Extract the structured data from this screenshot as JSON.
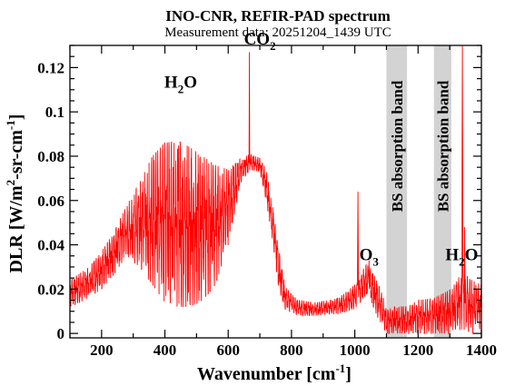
{
  "chart_data": {
    "type": "line",
    "title": "INO-CNR, REFIR-PAD spectrum",
    "subtitle": "Measurement data: 20251204_1439 UTC",
    "xlabel": "Wavenumber [cm-1]",
    "xlabel_main": "Wavenumber [cm",
    "xlabel_sup": "-1",
    "xlabel_end": "]",
    "ylabel": "DLR [W/m2-sr-cm-1]",
    "xlim": [
      100,
      1400
    ],
    "ylim": [
      -0.002,
      0.13
    ],
    "xticks": [
      200,
      400,
      600,
      800,
      1000,
      1200,
      1400
    ],
    "yticks": [
      0,
      0.02,
      0.04,
      0.06,
      0.08,
      0.1,
      0.12
    ],
    "xtick_labels": [
      "200",
      "400",
      "600",
      "800",
      "1000",
      "1200",
      "1400"
    ],
    "ytick_labels": [
      "0",
      "0.02",
      "0.04",
      "0.06",
      "0.08",
      "0.1",
      "0.12"
    ],
    "line_color": "#ff0000",
    "shaded_bands": [
      {
        "label": "BS absorption band",
        "x": [
          1100,
          1165
        ]
      },
      {
        "label": "BS absorption band",
        "x": [
          1250,
          1305
        ]
      }
    ],
    "band_color": "#d3d3d3",
    "annotations": [
      {
        "text": "H2O",
        "base": "H",
        "sub": "2",
        "tail": "O",
        "x": 450,
        "y": 0.111
      },
      {
        "text": "CO2",
        "base": "CO",
        "sub": "2",
        "x": 700,
        "y": 0.1305
      },
      {
        "text": "O3",
        "base": "O",
        "sub": "3",
        "x": 1045,
        "y": 0.033
      },
      {
        "text": "H2O",
        "base": "H",
        "sub": "2",
        "tail": "O",
        "x": 1338,
        "y": 0.033
      }
    ],
    "series": [
      {
        "color": "#ff0000",
        "envelope": [
          {
            "x": 100,
            "lo": 0.012,
            "hi": 0.024
          },
          {
            "x": 130,
            "lo": 0.014,
            "hi": 0.027
          },
          {
            "x": 160,
            "lo": 0.016,
            "hi": 0.03
          },
          {
            "x": 200,
            "lo": 0.02,
            "hi": 0.037
          },
          {
            "x": 240,
            "lo": 0.027,
            "hi": 0.046
          },
          {
            "x": 280,
            "lo": 0.035,
            "hi": 0.058
          },
          {
            "x": 320,
            "lo": 0.03,
            "hi": 0.068
          },
          {
            "x": 360,
            "lo": 0.022,
            "hi": 0.08
          },
          {
            "x": 400,
            "lo": 0.014,
            "hi": 0.086
          },
          {
            "x": 440,
            "lo": 0.012,
            "hi": 0.087
          },
          {
            "x": 480,
            "lo": 0.012,
            "hi": 0.084
          },
          {
            "x": 520,
            "lo": 0.015,
            "hi": 0.08
          },
          {
            "x": 560,
            "lo": 0.022,
            "hi": 0.076
          },
          {
            "x": 600,
            "lo": 0.04,
            "hi": 0.074
          },
          {
            "x": 640,
            "lo": 0.068,
            "hi": 0.079
          },
          {
            "x": 670,
            "lo": 0.074,
            "hi": 0.081
          },
          {
            "x": 700,
            "lo": 0.073,
            "hi": 0.079
          },
          {
            "x": 720,
            "lo": 0.06,
            "hi": 0.074
          },
          {
            "x": 740,
            "lo": 0.042,
            "hi": 0.058
          },
          {
            "x": 760,
            "lo": 0.02,
            "hi": 0.038
          },
          {
            "x": 780,
            "lo": 0.011,
            "hi": 0.021
          },
          {
            "x": 820,
            "lo": 0.008,
            "hi": 0.015
          },
          {
            "x": 880,
            "lo": 0.008,
            "hi": 0.014
          },
          {
            "x": 950,
            "lo": 0.009,
            "hi": 0.016
          },
          {
            "x": 1000,
            "lo": 0.011,
            "hi": 0.022
          },
          {
            "x": 1040,
            "lo": 0.018,
            "hi": 0.032
          },
          {
            "x": 1070,
            "lo": 0.008,
            "hi": 0.024
          },
          {
            "x": 1100,
            "lo": 0.0,
            "hi": 0.012
          },
          {
            "x": 1165,
            "lo": 0.0,
            "hi": 0.012
          },
          {
            "x": 1200,
            "lo": 0.0,
            "hi": 0.015
          },
          {
            "x": 1250,
            "lo": 0.0,
            "hi": 0.016
          },
          {
            "x": 1305,
            "lo": 0.0,
            "hi": 0.02
          },
          {
            "x": 1340,
            "lo": 0.002,
            "hi": 0.028
          },
          {
            "x": 1370,
            "lo": 0.0,
            "hi": 0.024
          },
          {
            "x": 1400,
            "lo": 0.0,
            "hi": 0.022
          }
        ],
        "peaks": [
          {
            "x": 667,
            "y": 0.127
          },
          {
            "x": 1010,
            "y": 0.064
          },
          {
            "x": 1045,
            "y": 0.033
          },
          {
            "x": 1340,
            "y": 0.13
          },
          {
            "x": 1347,
            "y": 0.048
          }
        ]
      }
    ]
  }
}
